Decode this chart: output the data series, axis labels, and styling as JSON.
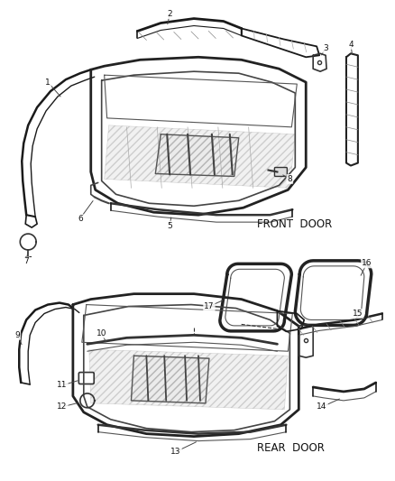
{
  "bg_color": "#ffffff",
  "line_color": "#2a2a2a",
  "dark": "#1a1a1a",
  "gray": "#666666",
  "lgray": "#aaaaaa",
  "front_door_label": "FRONT  DOOR",
  "rear_door_label": "REAR  DOOR",
  "figsize": [
    4.39,
    5.33
  ],
  "dpi": 100
}
